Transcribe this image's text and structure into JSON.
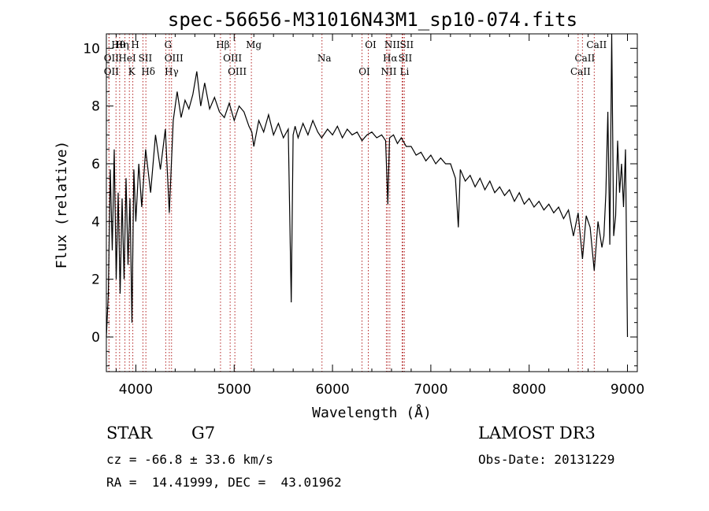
{
  "chart_data": {
    "type": "line",
    "title": "spec-56656-M31016N43M1_sp10-074.fits",
    "xlabel": "Wavelength (Å)",
    "ylabel": "Flux (relative)",
    "xlim": [
      3700,
      9100
    ],
    "ylim": [
      -1.2,
      10.5
    ],
    "xticks": [
      4000,
      5000,
      6000,
      7000,
      8000,
      9000
    ],
    "yticks": [
      0,
      2,
      4,
      6,
      8,
      10
    ],
    "line_color": "#000000",
    "marker_color": "#b22222",
    "series": [
      {
        "name": "flux",
        "x": [
          3700,
          3720,
          3740,
          3760,
          3780,
          3800,
          3820,
          3840,
          3860,
          3880,
          3900,
          3920,
          3940,
          3960,
          3980,
          4000,
          4030,
          4060,
          4100,
          4150,
          4200,
          4250,
          4300,
          4340,
          4380,
          4420,
          4460,
          4500,
          4540,
          4580,
          4620,
          4660,
          4700,
          4750,
          4800,
          4850,
          4900,
          4950,
          5000,
          5050,
          5100,
          5150,
          5180,
          5200,
          5250,
          5300,
          5350,
          5400,
          5450,
          5500,
          5550,
          5580,
          5600,
          5620,
          5650,
          5700,
          5750,
          5800,
          5850,
          5890,
          5950,
          6000,
          6050,
          6100,
          6150,
          6200,
          6250,
          6300,
          6350,
          6400,
          6450,
          6500,
          6540,
          6563,
          6580,
          6620,
          6660,
          6700,
          6750,
          6800,
          6850,
          6900,
          6950,
          7000,
          7050,
          7100,
          7150,
          7200,
          7250,
          7280,
          7300,
          7350,
          7400,
          7450,
          7500,
          7550,
          7600,
          7650,
          7700,
          7750,
          7800,
          7850,
          7900,
          7950,
          8000,
          8050,
          8100,
          8150,
          8200,
          8250,
          8300,
          8350,
          8400,
          8450,
          8498,
          8542,
          8580,
          8620,
          8662,
          8700,
          8740,
          8760,
          8780,
          8800,
          8820,
          8840,
          8860,
          8880,
          8900,
          8920,
          8940,
          8960,
          8980,
          9000
        ],
        "y": [
          0.0,
          1.5,
          5.8,
          3.0,
          6.5,
          2.0,
          5.0,
          1.5,
          4.8,
          2.0,
          5.5,
          2.5,
          4.8,
          0.5,
          5.8,
          4.0,
          6.0,
          4.5,
          6.5,
          5.0,
          7.0,
          5.8,
          7.2,
          4.3,
          7.5,
          8.5,
          7.6,
          8.2,
          7.9,
          8.4,
          9.2,
          8.0,
          8.8,
          7.9,
          8.3,
          7.8,
          7.6,
          8.1,
          7.5,
          8.0,
          7.8,
          7.3,
          7.1,
          6.6,
          7.5,
          7.1,
          7.7,
          7.0,
          7.4,
          6.9,
          7.2,
          1.2,
          7.0,
          7.3,
          6.9,
          7.4,
          7.0,
          7.5,
          7.1,
          6.9,
          7.2,
          7.0,
          7.3,
          6.9,
          7.2,
          7.0,
          7.1,
          6.8,
          7.0,
          7.1,
          6.9,
          7.0,
          6.8,
          4.6,
          6.9,
          7.0,
          6.7,
          6.9,
          6.6,
          6.6,
          6.3,
          6.4,
          6.1,
          6.3,
          6.0,
          6.2,
          6.0,
          6.0,
          5.5,
          3.8,
          5.8,
          5.4,
          5.6,
          5.2,
          5.5,
          5.1,
          5.4,
          5.0,
          5.2,
          4.9,
          5.1,
          4.7,
          5.0,
          4.6,
          4.8,
          4.5,
          4.7,
          4.4,
          4.6,
          4.3,
          4.5,
          4.1,
          4.4,
          3.5,
          4.3,
          2.7,
          4.2,
          3.8,
          2.3,
          4.0,
          3.1,
          3.5,
          5.0,
          7.8,
          3.2,
          10.5,
          3.5,
          4.2,
          6.8,
          5.0,
          6.0,
          4.5,
          6.5,
          0.0
        ]
      }
    ],
    "emission_lines": [
      {
        "label": "Hθ",
        "wavelength": 3798
      },
      {
        "label": "OII",
        "wavelength": 3727
      },
      {
        "label": "OII",
        "wavelength": 3727
      },
      {
        "label": "Hη",
        "wavelength": 3835
      },
      {
        "label": "HeI",
        "wavelength": 3889
      },
      {
        "label": "K",
        "wavelength": 3934
      },
      {
        "label": "H",
        "wavelength": 3969
      },
      {
        "label": "SII",
        "wavelength": 4072
      },
      {
        "label": "Hδ",
        "wavelength": 4102
      },
      {
        "label": "G",
        "wavelength": 4304
      },
      {
        "label": "OIII",
        "wavelength": 4363
      },
      {
        "label": "Hγ",
        "wavelength": 4340
      },
      {
        "label": "Hβ",
        "wavelength": 4861
      },
      {
        "label": "OIII",
        "wavelength": 4959
      },
      {
        "label": "OIII",
        "wavelength": 5007
      },
      {
        "label": "Mg",
        "wavelength": 5175
      },
      {
        "label": "Na",
        "wavelength": 5893
      },
      {
        "label": "OI",
        "wavelength": 6300
      },
      {
        "label": "OI",
        "wavelength": 6364
      },
      {
        "label": "Hα",
        "wavelength": 6563
      },
      {
        "label": "NII",
        "wavelength": 6548
      },
      {
        "label": "NII",
        "wavelength": 6583
      },
      {
        "label": "SII",
        "wavelength": 6716
      },
      {
        "label": "Li",
        "wavelength": 6708
      },
      {
        "label": "SII",
        "wavelength": 6731
      },
      {
        "label": "CaII",
        "wavelength": 8542
      },
      {
        "label": "CaII",
        "wavelength": 8498
      },
      {
        "label": "CaII",
        "wavelength": 8662
      }
    ]
  },
  "info": {
    "class_label": "STAR",
    "subclass": "G7",
    "cz": "cz = -66.8 ± 33.6 km/s",
    "coords": "RA =  14.41999, DEC =  43.01962",
    "survey": "LAMOST DR3",
    "obs_date": "Obs-Date: 20131229"
  }
}
